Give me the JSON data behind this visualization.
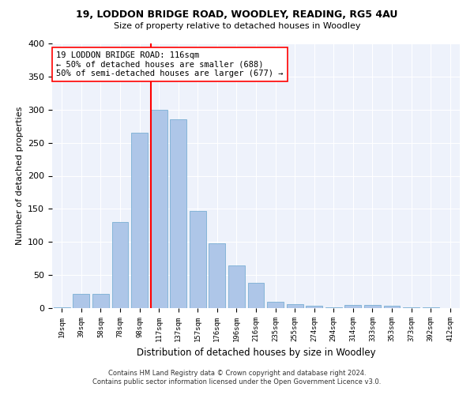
{
  "title1": "19, LODDON BRIDGE ROAD, WOODLEY, READING, RG5 4AU",
  "title2": "Size of property relative to detached houses in Woodley",
  "xlabel": "Distribution of detached houses by size in Woodley",
  "ylabel": "Number of detached properties",
  "categories": [
    "19sqm",
    "39sqm",
    "58sqm",
    "78sqm",
    "98sqm",
    "117sqm",
    "137sqm",
    "157sqm",
    "176sqm",
    "196sqm",
    "216sqm",
    "235sqm",
    "255sqm",
    "274sqm",
    "294sqm",
    "314sqm",
    "333sqm",
    "353sqm",
    "373sqm",
    "392sqm",
    "412sqm"
  ],
  "values": [
    1,
    22,
    22,
    130,
    265,
    300,
    285,
    147,
    98,
    65,
    38,
    9,
    6,
    4,
    1,
    5,
    5,
    3,
    1,
    1,
    0
  ],
  "bar_color": "#aec6e8",
  "bar_edge_color": "#7aafd4",
  "vline_color": "red",
  "annotation_text": "19 LODDON BRIDGE ROAD: 116sqm\n← 50% of detached houses are smaller (688)\n50% of semi-detached houses are larger (677) →",
  "annotation_box_color": "white",
  "annotation_box_edge_color": "red",
  "ylim": [
    0,
    400
  ],
  "yticks": [
    0,
    50,
    100,
    150,
    200,
    250,
    300,
    350,
    400
  ],
  "bg_color": "#eef2fb",
  "grid_color": "#ffffff",
  "footer1": "Contains HM Land Registry data © Crown copyright and database right 2024.",
  "footer2": "Contains public sector information licensed under the Open Government Licence v3.0."
}
